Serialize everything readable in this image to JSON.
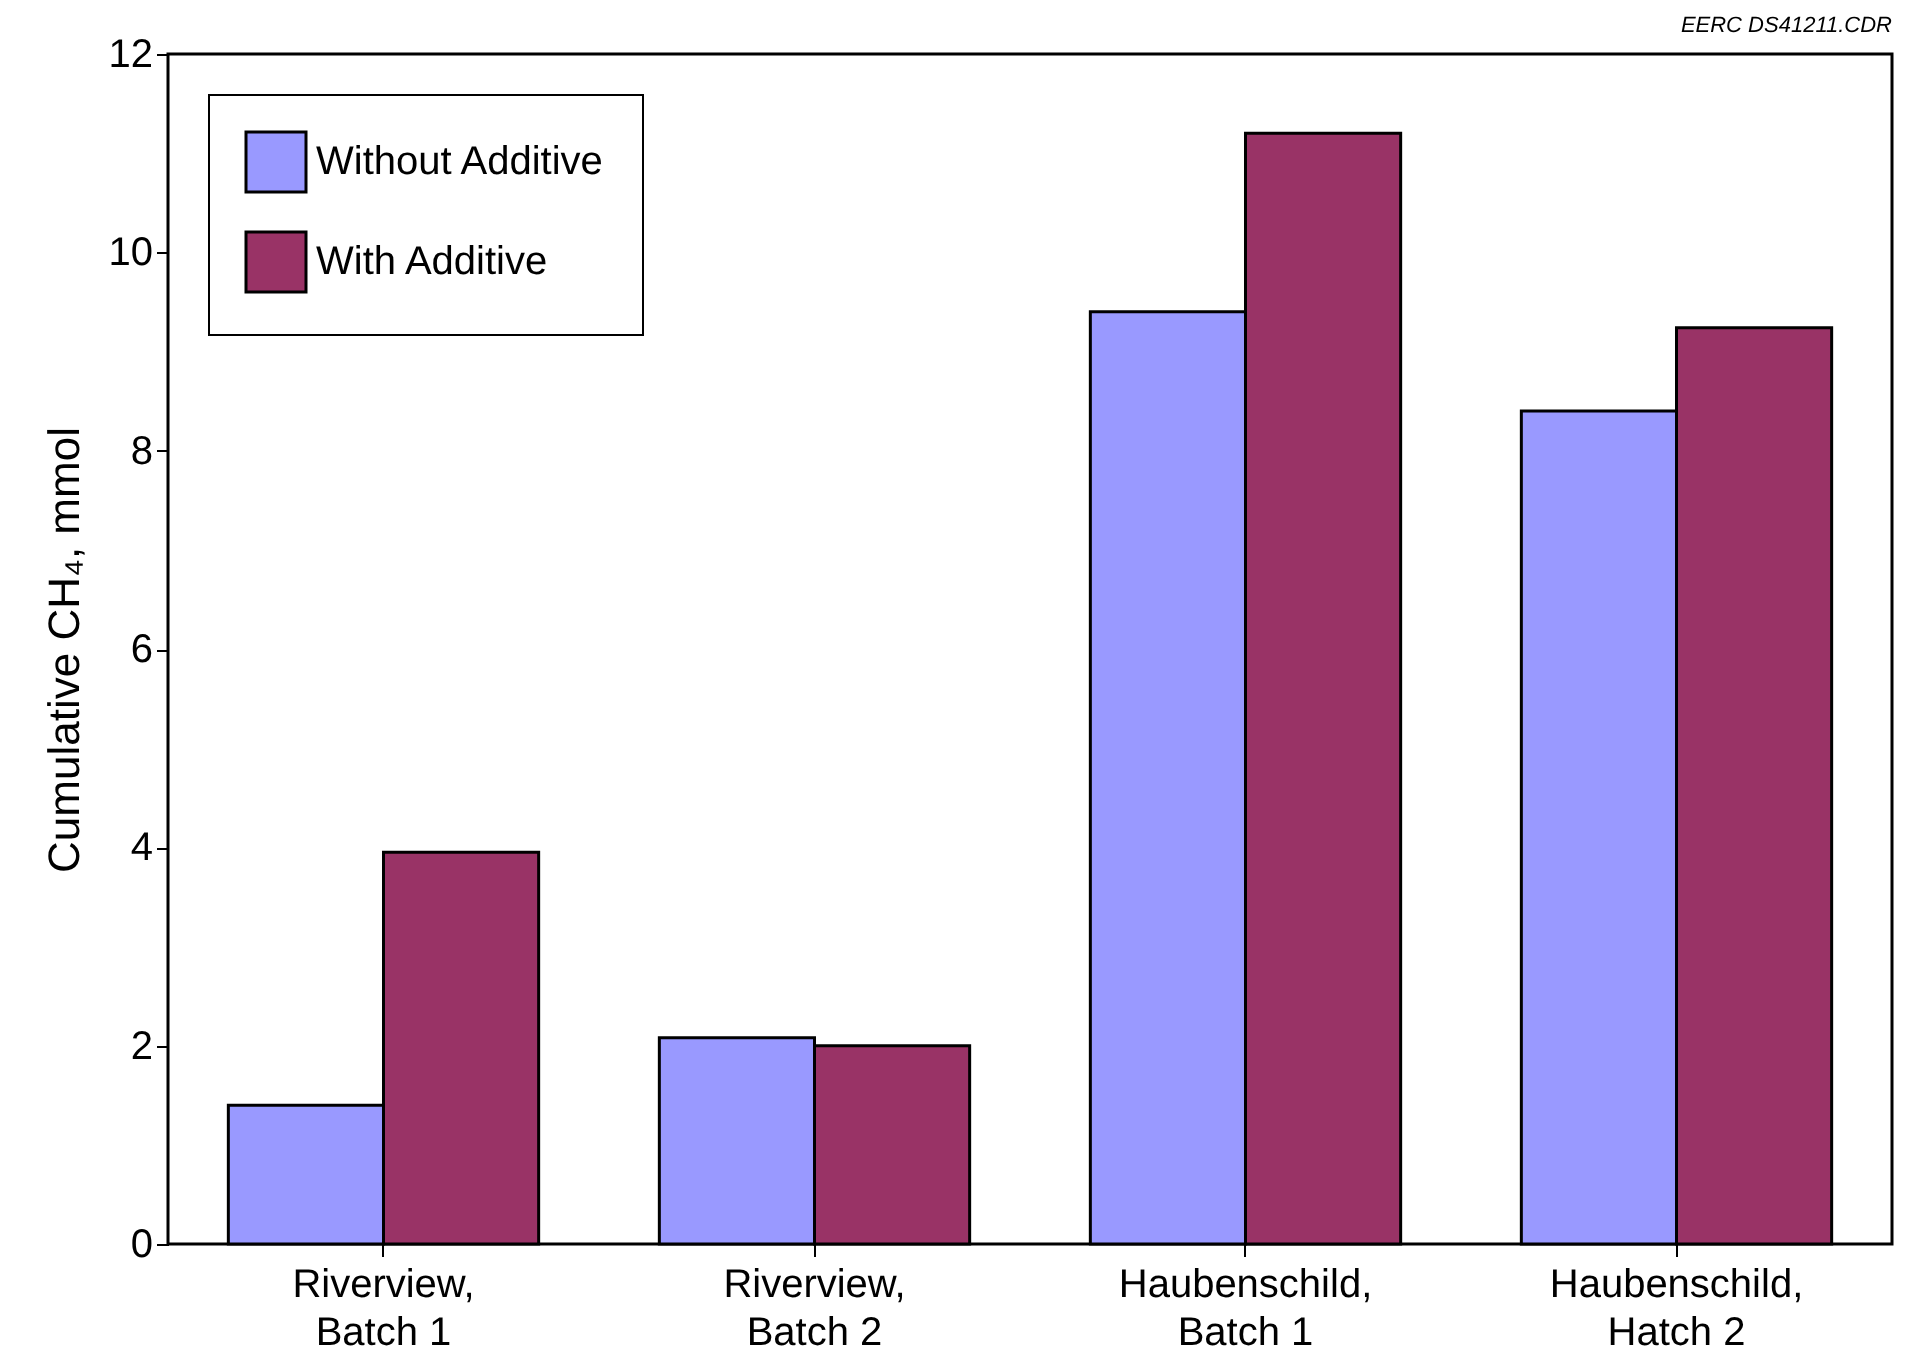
{
  "chart_data": {
    "type": "bar",
    "ylabel": "Cumulative CH₄, mmol",
    "annotations": [
      "EERC DS41211.CDR"
    ],
    "categories": [
      "Riverview,\nBatch 1",
      "Riverview,\nBatch 2",
      "Haubenschild,\nBatch 1",
      "Haubenschild,\nHatch 2"
    ],
    "series": [
      {
        "name": "Without Additive",
        "color": "#9999ff",
        "values": [
          1.4,
          2.08,
          9.4,
          8.4
        ]
      },
      {
        "name": "With Additive",
        "color": "#993366",
        "values": [
          3.95,
          2.0,
          11.2,
          9.24
        ]
      }
    ],
    "ylim": [
      0,
      12
    ],
    "yticks": [
      0,
      2,
      4,
      6,
      8,
      10,
      12
    ],
    "grid": false,
    "legend": "top left"
  }
}
